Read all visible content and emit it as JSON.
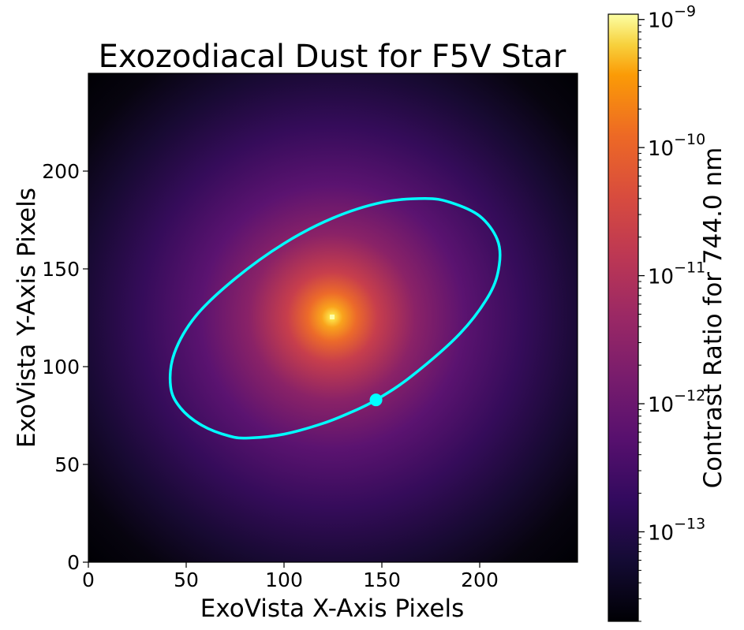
{
  "chart_data": {
    "type": "heatmap",
    "title": "Exozodiacal Dust for F5V Star",
    "xlabel": "ExoVista X-Axis Pixels",
    "ylabel": "ExoVista Y-Axis Pixels",
    "xlim": [
      0,
      250
    ],
    "ylim": [
      0,
      250
    ],
    "xticks": [
      0,
      50,
      100,
      150,
      200
    ],
    "yticks": [
      0,
      50,
      100,
      150,
      200
    ],
    "grid": false,
    "colormap": "inferno",
    "colorbar": {
      "label": "Contrast Ratio for 744.0 nm",
      "scale": "log",
      "range": [
        2e-14,
        1.1e-09
      ],
      "major_ticks": [
        {
          "value": 1e-13,
          "base": "10",
          "exp": "−13"
        },
        {
          "value": 1e-12,
          "base": "10",
          "exp": "−12"
        },
        {
          "value": 1e-11,
          "base": "10",
          "exp": "−11"
        },
        {
          "value": 1e-10,
          "base": "10",
          "exp": "−10"
        },
        {
          "value": 1e-09,
          "base": "10",
          "exp": "−9"
        }
      ]
    },
    "star_center": [
      125,
      125
    ],
    "peak_contrast": 1e-09,
    "orbit": {
      "color": "#00ffff",
      "points": [
        [
          42,
          90
        ],
        [
          47,
          79
        ],
        [
          58,
          70
        ],
        [
          72,
          64.5
        ],
        [
          82,
          63.5
        ],
        [
          100,
          65.5
        ],
        [
          120,
          71
        ],
        [
          135,
          77
        ],
        [
          147,
          83
        ],
        [
          165,
          95
        ],
        [
          190,
          117
        ],
        [
          205,
          137
        ],
        [
          210,
          152
        ],
        [
          209,
          165
        ],
        [
          200,
          177
        ],
        [
          185,
          184
        ],
        [
          172,
          186
        ],
        [
          150,
          184
        ],
        [
          125,
          176
        ],
        [
          100,
          163
        ],
        [
          75,
          145
        ],
        [
          55,
          126
        ],
        [
          44,
          107
        ]
      ],
      "planet": [
        147,
        83
      ]
    }
  }
}
